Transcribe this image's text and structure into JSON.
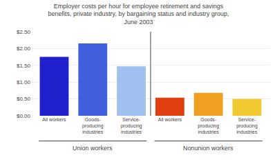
{
  "chart_data": {
    "type": "bar",
    "title": "Employer costs per hour for employee retirement and savings\nbenefits, private industry, by bargaining status and industry group,\nJune 2003",
    "categories": [
      "All workers",
      "Goods-\nproducing\nindustries",
      "Service-\nproducing\nindustries",
      "All workers",
      "Goods-\nproducing\nindustries",
      "Service-\nproducing\nindustries"
    ],
    "values": [
      1.75,
      2.15,
      1.47,
      0.54,
      0.68,
      0.5
    ],
    "colors": [
      "#2020cc",
      "#4060e0",
      "#a0c0f0",
      "#e04010",
      "#f0a020",
      "#f0c830"
    ],
    "annotations": [
      "Union workers",
      "Nonunion workers"
    ],
    "ylim": [
      0,
      2.5
    ],
    "yticks": [
      {
        "value": 0,
        "label": "$0.00"
      },
      {
        "value": 0.5,
        "label": "$0.50"
      },
      {
        "value": 1,
        "label": "$1.00"
      },
      {
        "value": 1.5,
        "label": "$1.50"
      },
      {
        "value": 2,
        "label": "$2.00"
      },
      {
        "value": 2.5,
        "label": "$2.50"
      }
    ],
    "grid": true
  }
}
